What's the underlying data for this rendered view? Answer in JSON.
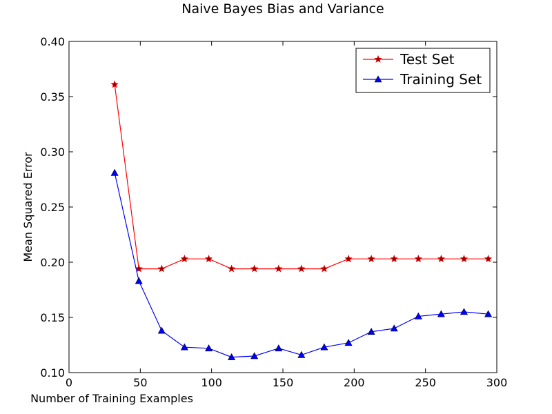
{
  "chart_data": {
    "type": "line",
    "title": "Naive Bayes Bias and Variance",
    "xlabel": "Number of Training Examples",
    "ylabel": "Mean Squared Error",
    "xlim": [
      0,
      300
    ],
    "ylim": [
      0.1,
      0.4
    ],
    "x_ticks": [
      "0",
      "50",
      "100",
      "150",
      "200",
      "250",
      "300"
    ],
    "y_ticks": [
      "0.10",
      "0.15",
      "0.20",
      "0.25",
      "0.30",
      "0.35",
      "0.40"
    ],
    "grid": false,
    "legend_position": "top-right",
    "x": [
      32,
      49,
      65,
      81,
      98,
      114,
      130,
      147,
      163,
      179,
      196,
      212,
      228,
      245,
      261,
      277,
      294
    ],
    "series": [
      {
        "name": "Test Set",
        "color": "#ff0000",
        "marker": "star",
        "values": [
          0.361,
          0.194,
          0.194,
          0.203,
          0.203,
          0.194,
          0.194,
          0.194,
          0.194,
          0.194,
          0.203,
          0.203,
          0.203,
          0.203,
          0.203,
          0.203,
          0.203
        ]
      },
      {
        "name": "Training Set",
        "color": "#0000ff",
        "marker": "triangle",
        "values": [
          0.281,
          0.183,
          0.138,
          0.123,
          0.122,
          0.114,
          0.115,
          0.122,
          0.116,
          0.123,
          0.127,
          0.137,
          0.14,
          0.151,
          0.153,
          0.155,
          0.153
        ]
      }
    ]
  }
}
